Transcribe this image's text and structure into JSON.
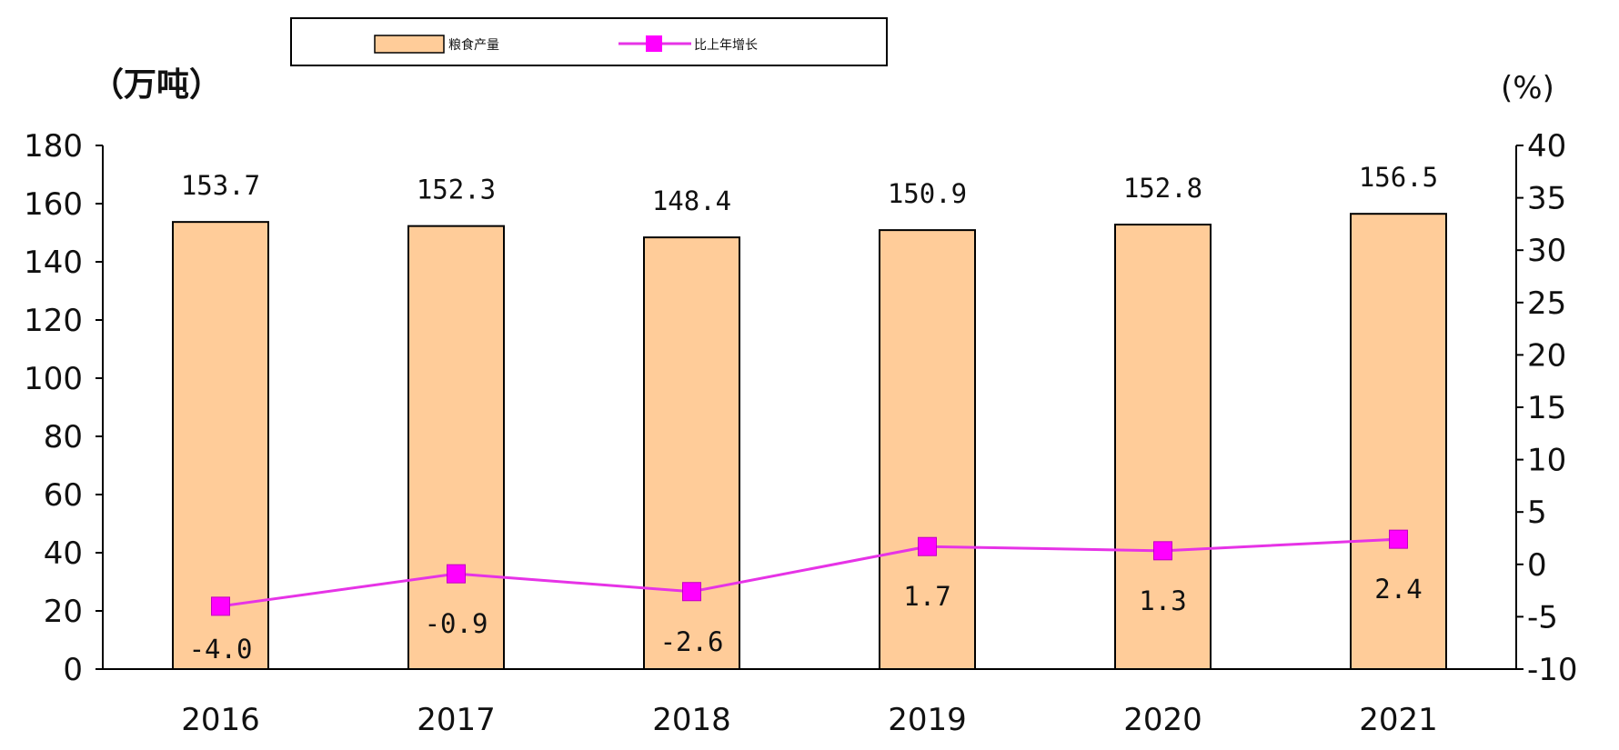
{
  "chart_data": {
    "type": "bar",
    "categories": [
      "2016",
      "2017",
      "2018",
      "2019",
      "2020",
      "2021"
    ],
    "series": [
      {
        "name": "粮食产量",
        "type": "bar",
        "axis": "left",
        "values": [
          153.7,
          152.3,
          148.4,
          150.9,
          152.8,
          156.5
        ],
        "labels": [
          "153.7",
          "152.3",
          "148.4",
          "150.9",
          "152.8",
          "156.5"
        ]
      },
      {
        "name": "比上年增长",
        "type": "line",
        "axis": "right",
        "values": [
          -4.0,
          -0.9,
          -2.6,
          1.7,
          1.3,
          2.4
        ],
        "labels": [
          "-4.0",
          "-0.9",
          "-2.6",
          "1.7",
          "1.3",
          "2.4"
        ]
      }
    ],
    "y_left": {
      "unit": "（万吨）",
      "range": [
        0,
        180
      ],
      "ticks": [
        "0",
        "20",
        "40",
        "60",
        "80",
        "100",
        "120",
        "140",
        "160",
        "180"
      ]
    },
    "y_right": {
      "unit": "(%)",
      "range": [
        -10,
        40
      ],
      "ticks": [
        "-10",
        "-5",
        "0",
        "5",
        "10",
        "15",
        "20",
        "25",
        "30",
        "35",
        "40"
      ]
    },
    "legend_position": "top",
    "grid": false,
    "colors": {
      "bar_fill": "#FFCC99",
      "bar_stroke": "#000000",
      "line": "#E633E6",
      "marker": "#FF00FF"
    }
  }
}
